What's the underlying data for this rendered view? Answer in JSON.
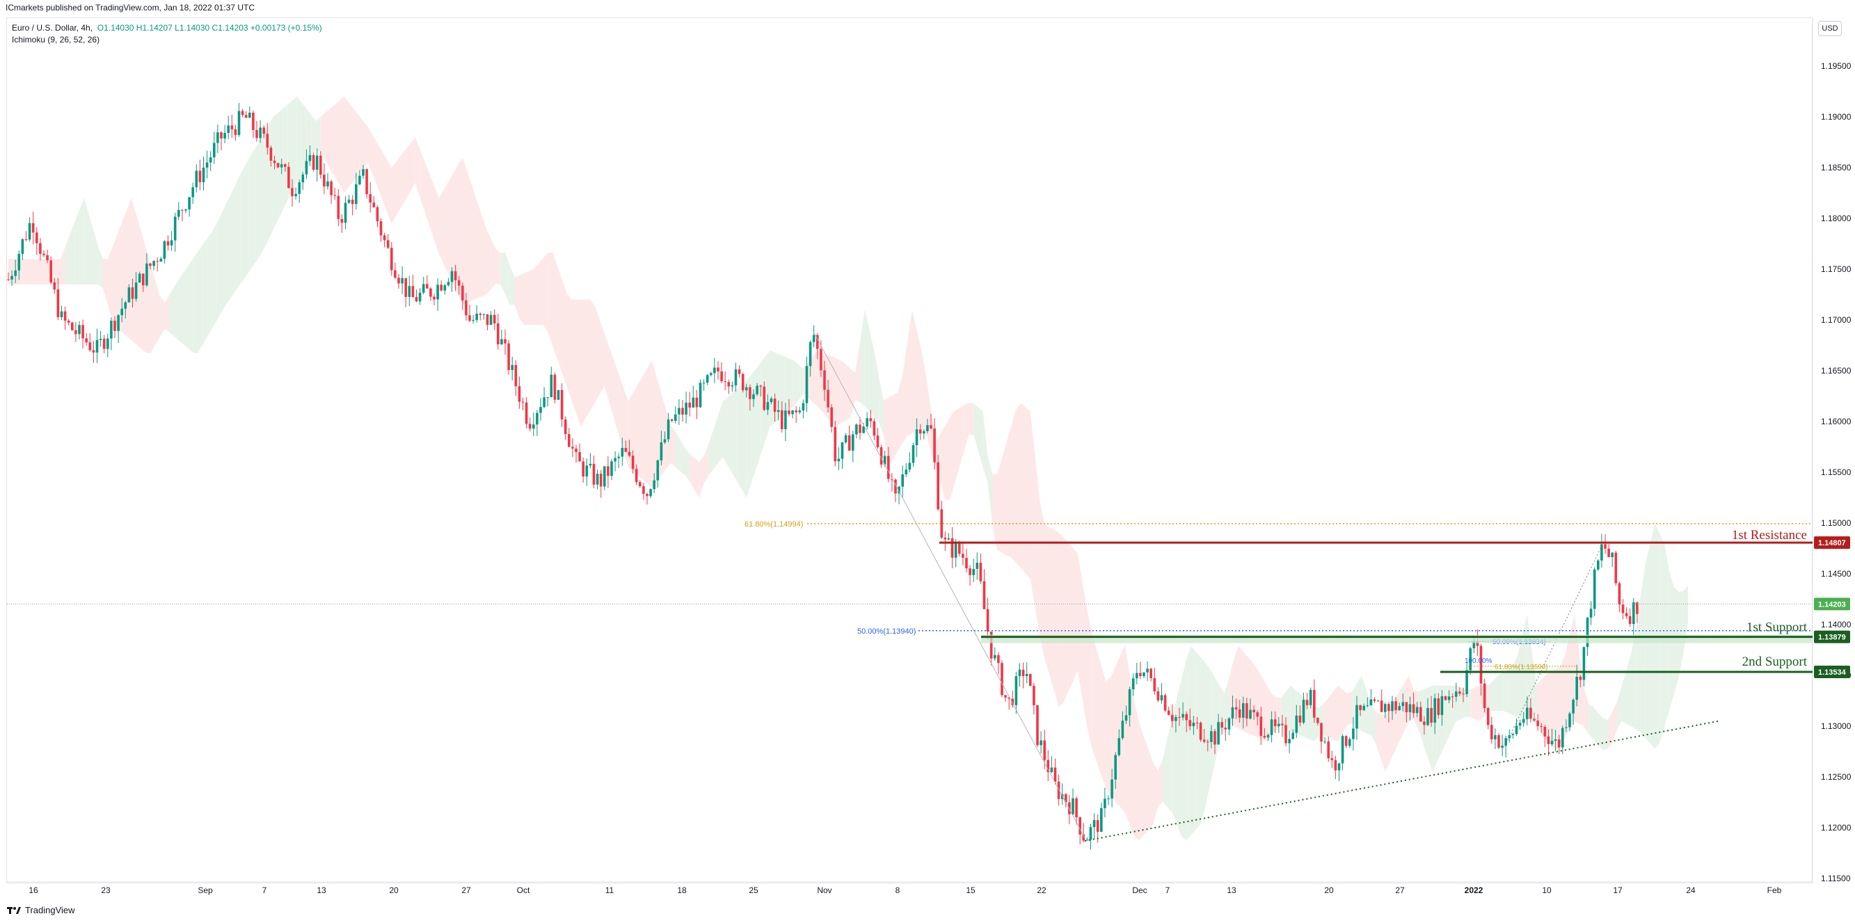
{
  "header": {
    "publisher": "ICmarkets published on TradingView.com, Jan 18, 2022 01:37 UTC"
  },
  "legend": {
    "symbol": "Euro / U.S. Dollar, 4h,",
    "ohlc": "O1.14030  H1.14207  L1.14030  C1.14203  +0.00173 (+0.15%)",
    "indicator": "Ichimoku (9, 26, 52, 26)"
  },
  "currency_badge": "USD",
  "footer": {
    "logo": "TradingView"
  },
  "colors": {
    "up": "#089981",
    "down": "#f23645",
    "grid": "#e0e3eb",
    "resistance": "#b71c1c",
    "support": "#1b5e20",
    "fib_gold": "#d4a017",
    "fib_blue": "#2962ff",
    "cloud_bear": "#fde4e4",
    "cloud_bull": "#e3f1e5"
  },
  "chart_data": {
    "type": "candlestick",
    "instrument": "EURUSD",
    "interval": "4h",
    "y_axis": {
      "range": [
        1.1115,
        1.198
      ],
      "ticks": [
        "1.19500",
        "1.19000",
        "1.18500",
        "1.18000",
        "1.17500",
        "1.17000",
        "1.16500",
        "1.16000",
        "1.15500",
        "1.15000",
        "1.14500",
        "1.14000",
        "1.13500",
        "1.13000",
        "1.12500",
        "1.12000",
        "1.11500"
      ]
    },
    "x_axis": {
      "ticks": [
        "16",
        "23",
        "Sep",
        "7",
        "13",
        "20",
        "27",
        "Oct",
        "11",
        "18",
        "25",
        "Nov",
        "8",
        "15",
        "22",
        "Dec",
        "7",
        "13",
        "20",
        "27",
        "2022",
        "10",
        "17",
        "24",
        "Feb"
      ]
    },
    "price_path": [
      [
        0,
        1.174
      ],
      [
        20,
        1.18
      ],
      [
        45,
        1.17
      ],
      [
        75,
        1.167
      ],
      [
        100,
        1.172
      ],
      [
        130,
        1.177
      ],
      [
        155,
        1.183
      ],
      [
        180,
        1.188
      ],
      [
        200,
        1.19
      ],
      [
        220,
        1.187
      ],
      [
        240,
        1.183
      ],
      [
        260,
        1.186
      ],
      [
        280,
        1.18
      ],
      [
        300,
        1.184
      ],
      [
        320,
        1.177
      ],
      [
        340,
        1.172
      ],
      [
        360,
        1.173
      ],
      [
        375,
        1.175
      ],
      [
        390,
        1.17
      ],
      [
        410,
        1.17
      ],
      [
        425,
        1.165
      ],
      [
        440,
        1.16
      ],
      [
        460,
        1.164
      ],
      [
        480,
        1.156
      ],
      [
        500,
        1.154
      ],
      [
        520,
        1.157
      ],
      [
        540,
        1.153
      ],
      [
        560,
        1.16
      ],
      [
        580,
        1.162
      ],
      [
        600,
        1.165
      ],
      [
        620,
        1.164
      ],
      [
        640,
        1.162
      ],
      [
        655,
        1.16
      ],
      [
        670,
        1.161
      ],
      [
        680,
        1.169
      ],
      [
        690,
        1.164
      ],
      [
        700,
        1.156
      ],
      [
        715,
        1.159
      ],
      [
        730,
        1.16
      ],
      [
        750,
        1.152
      ],
      [
        770,
        1.16
      ],
      [
        780,
        1.159
      ],
      [
        790,
        1.148
      ],
      [
        805,
        1.147
      ],
      [
        820,
        1.145
      ],
      [
        830,
        1.138
      ],
      [
        845,
        1.132
      ],
      [
        860,
        1.136
      ],
      [
        870,
        1.129
      ],
      [
        885,
        1.124
      ],
      [
        900,
        1.122
      ],
      [
        910,
        1.119
      ],
      [
        925,
        1.121
      ],
      [
        940,
        1.129
      ],
      [
        955,
        1.136
      ],
      [
        970,
        1.134
      ],
      [
        985,
        1.131
      ],
      [
        1000,
        1.13
      ],
      [
        1020,
        1.129
      ],
      [
        1040,
        1.132
      ],
      [
        1060,
        1.13
      ],
      [
        1080,
        1.129
      ],
      [
        1100,
        1.133
      ],
      [
        1120,
        1.126
      ],
      [
        1140,
        1.131
      ],
      [
        1160,
        1.132
      ],
      [
        1180,
        1.132
      ],
      [
        1200,
        1.131
      ],
      [
        1215,
        1.133
      ],
      [
        1230,
        1.134
      ],
      [
        1240,
        1.139
      ],
      [
        1250,
        1.13
      ],
      [
        1265,
        1.128
      ],
      [
        1280,
        1.131
      ],
      [
        1295,
        1.13
      ],
      [
        1310,
        1.128
      ],
      [
        1320,
        1.132
      ],
      [
        1330,
        1.136
      ],
      [
        1340,
        1.144
      ],
      [
        1348,
        1.148
      ],
      [
        1356,
        1.146
      ],
      [
        1362,
        1.142
      ],
      [
        1370,
        1.141
      ],
      [
        1377,
        1.142
      ]
    ],
    "ichimoku_cloud": {
      "parameters": [
        9,
        26,
        52,
        26
      ]
    },
    "annotations": {
      "fib_levels": [
        {
          "label": "61.80%(1.14994)",
          "price": 1.14994
        },
        {
          "label": "50.00%(1.13940)",
          "price": 1.1394
        },
        {
          "label": "50.00%(1.13834)",
          "price": 1.13834
        },
        {
          "label": "61.80%(1.13590)",
          "price": 1.1359
        },
        {
          "label": "100.00%",
          "price": 1.1365
        }
      ],
      "levels": [
        {
          "name": "1st Resistance",
          "price": 1.14807,
          "badge": "1.14807"
        },
        {
          "name": "1st Support",
          "price": 1.13879,
          "badge": "1.13879"
        },
        {
          "name": "2nd Support",
          "price": 1.13534,
          "badge": "1.13534"
        }
      ],
      "current_price": "1.14203"
    }
  }
}
